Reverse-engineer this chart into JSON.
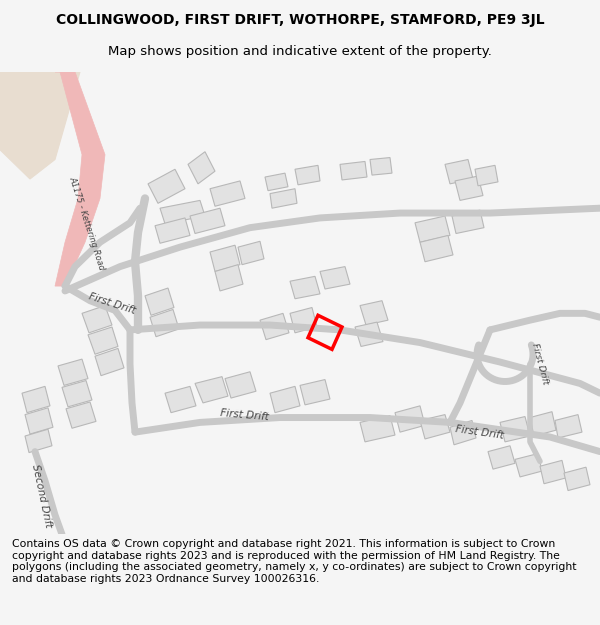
{
  "title_line1": "COLLINGWOOD, FIRST DRIFT, WOTHORPE, STAMFORD, PE9 3JL",
  "title_line2": "Map shows position and indicative extent of the property.",
  "footer_text": "Contains OS data © Crown copyright and database right 2021. This information is subject to Crown copyright and database rights 2023 and is reproduced with the permission of HM Land Registry. The polygons (including the associated geometry, namely x, y co-ordinates) are subject to Crown copyright and database rights 2023 Ordnance Survey 100026316.",
  "bg_color": "#f5f5f5",
  "map_bg": "#ffffff",
  "road_color": "#c8c8c8",
  "building_color": "#e2e2e2",
  "building_edge": "#b8b8b8",
  "highlight_color": "#ff0000",
  "road_label_color": "#444444",
  "pink_road": "#f0b8b8",
  "tan_area": "#e8ddd0",
  "title_fontsize": 10,
  "subtitle_fontsize": 9.5,
  "footer_fontsize": 7.8
}
